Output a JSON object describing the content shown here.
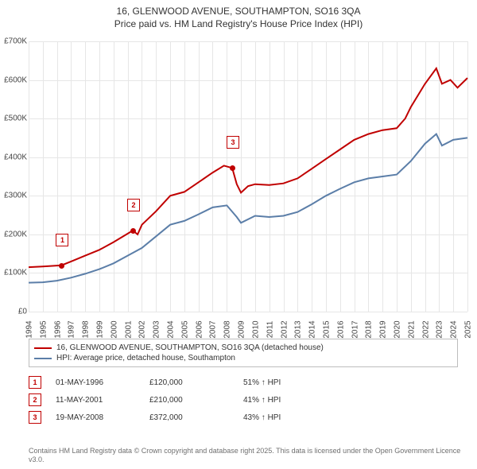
{
  "title_line1": "16, GLENWOOD AVENUE, SOUTHAMPTON, SO16 3QA",
  "title_line2": "Price paid vs. HM Land Registry's House Price Index (HPI)",
  "chart": {
    "type": "line",
    "background_color": "#ffffff",
    "grid_color": "#e6e6e6",
    "x": {
      "min": 1994,
      "max": 2025,
      "ticks": [
        1994,
        1995,
        1996,
        1997,
        1998,
        1999,
        2000,
        2001,
        2002,
        2003,
        2004,
        2005,
        2006,
        2007,
        2008,
        2009,
        2010,
        2011,
        2012,
        2013,
        2014,
        2015,
        2016,
        2017,
        2018,
        2019,
        2020,
        2021,
        2022,
        2023,
        2024,
        2025
      ]
    },
    "y": {
      "min": 0,
      "max": 700000,
      "ticks": [
        0,
        100000,
        200000,
        300000,
        400000,
        500000,
        600000,
        700000
      ],
      "labels": [
        "£0",
        "£100K",
        "£200K",
        "£300K",
        "£400K",
        "£500K",
        "£600K",
        "£700K"
      ]
    },
    "series": [
      {
        "name": "16, GLENWOOD AVENUE, SOUTHAMPTON, SO16 3QA (detached house)",
        "color": "#c00000",
        "width": 2,
        "points": [
          [
            1994,
            115000
          ],
          [
            1995,
            117000
          ],
          [
            1996.33,
            120000
          ],
          [
            1997,
            130000
          ],
          [
            1998,
            145000
          ],
          [
            1999,
            160000
          ],
          [
            2000,
            180000
          ],
          [
            2001.36,
            210000
          ],
          [
            2001.7,
            200000
          ],
          [
            2002,
            225000
          ],
          [
            2003,
            260000
          ],
          [
            2004,
            300000
          ],
          [
            2005,
            310000
          ],
          [
            2006,
            335000
          ],
          [
            2007,
            360000
          ],
          [
            2007.8,
            378000
          ],
          [
            2008.38,
            372000
          ],
          [
            2008.7,
            330000
          ],
          [
            2009,
            308000
          ],
          [
            2009.5,
            325000
          ],
          [
            2010,
            330000
          ],
          [
            2011,
            328000
          ],
          [
            2012,
            332000
          ],
          [
            2013,
            345000
          ],
          [
            2014,
            370000
          ],
          [
            2015,
            395000
          ],
          [
            2016,
            420000
          ],
          [
            2017,
            445000
          ],
          [
            2018,
            460000
          ],
          [
            2019,
            470000
          ],
          [
            2020,
            475000
          ],
          [
            2020.6,
            500000
          ],
          [
            2021,
            530000
          ],
          [
            2022,
            590000
          ],
          [
            2022.8,
            630000
          ],
          [
            2023.2,
            590000
          ],
          [
            2023.8,
            600000
          ],
          [
            2024.3,
            580000
          ],
          [
            2025,
            605000
          ]
        ]
      },
      {
        "name": "HPI: Average price, detached house, Southampton",
        "color": "#5b7ea8",
        "width": 2,
        "points": [
          [
            1994,
            75000
          ],
          [
            1995,
            76000
          ],
          [
            1996,
            80000
          ],
          [
            1997,
            88000
          ],
          [
            1998,
            98000
          ],
          [
            1999,
            110000
          ],
          [
            2000,
            125000
          ],
          [
            2001,
            145000
          ],
          [
            2002,
            165000
          ],
          [
            2003,
            195000
          ],
          [
            2004,
            225000
          ],
          [
            2005,
            235000
          ],
          [
            2006,
            252000
          ],
          [
            2007,
            270000
          ],
          [
            2008,
            275000
          ],
          [
            2008.7,
            245000
          ],
          [
            2009,
            230000
          ],
          [
            2010,
            248000
          ],
          [
            2011,
            245000
          ],
          [
            2012,
            248000
          ],
          [
            2013,
            258000
          ],
          [
            2014,
            278000
          ],
          [
            2015,
            300000
          ],
          [
            2016,
            318000
          ],
          [
            2017,
            335000
          ],
          [
            2018,
            345000
          ],
          [
            2019,
            350000
          ],
          [
            2020,
            355000
          ],
          [
            2021,
            390000
          ],
          [
            2022,
            435000
          ],
          [
            2022.8,
            460000
          ],
          [
            2023.2,
            430000
          ],
          [
            2024,
            445000
          ],
          [
            2025,
            450000
          ]
        ]
      }
    ],
    "sale_markers": [
      {
        "n": "1",
        "x": 1996.33,
        "y": 120000
      },
      {
        "n": "2",
        "x": 2001.36,
        "y": 210000
      },
      {
        "n": "3",
        "x": 2008.38,
        "y": 372000
      }
    ]
  },
  "legend": [
    {
      "color": "#c00000",
      "label": "16, GLENWOOD AVENUE, SOUTHAMPTON, SO16 3QA (detached house)"
    },
    {
      "color": "#5b7ea8",
      "label": "HPI: Average price, detached house, Southampton"
    }
  ],
  "sales": [
    {
      "n": "1",
      "date": "01-MAY-1996",
      "price": "£120,000",
      "pct": "51% ↑ HPI"
    },
    {
      "n": "2",
      "date": "11-MAY-2001",
      "price": "£210,000",
      "pct": "41% ↑ HPI"
    },
    {
      "n": "3",
      "date": "19-MAY-2008",
      "price": "£372,000",
      "pct": "43% ↑ HPI"
    }
  ],
  "footer": "Contains HM Land Registry data © Crown copyright and database right 2025. This data is licensed under the Open Government Licence v3.0."
}
